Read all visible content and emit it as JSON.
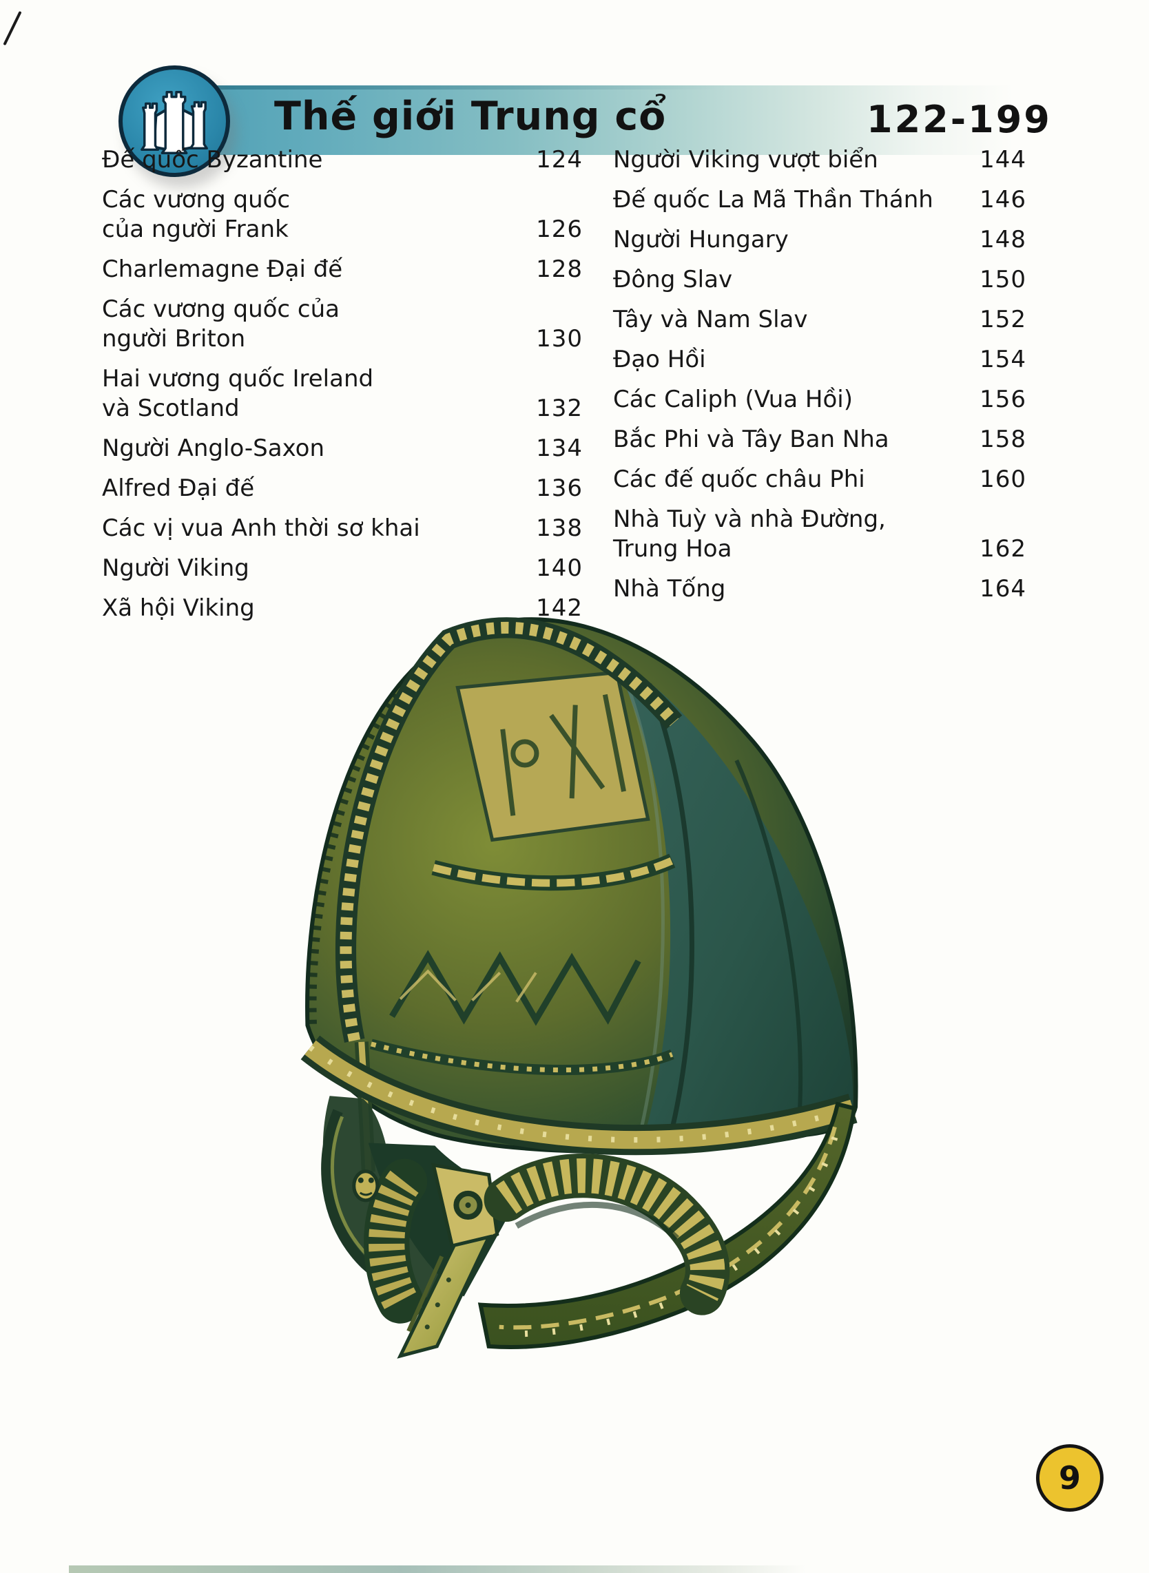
{
  "header": {
    "title": "Thế giới Trung cổ",
    "page_range": "122-199",
    "icon": "castle-towers-icon"
  },
  "toc": {
    "left": [
      {
        "lines": [
          "Đế quốc Byzantine"
        ],
        "page": "124"
      },
      {
        "lines": [
          "Các vương quốc",
          "của người Frank"
        ],
        "page": "126"
      },
      {
        "lines": [
          "Charlemagne Đại đế"
        ],
        "page": "128"
      },
      {
        "lines": [
          "Các vương quốc của",
          "người Briton"
        ],
        "page": "130"
      },
      {
        "lines": [
          "Hai vương quốc Ireland",
          "và Scotland"
        ],
        "page": "132"
      },
      {
        "lines": [
          "Người Anglo-Saxon"
        ],
        "page": "134"
      },
      {
        "lines": [
          "Alfred Đại đế"
        ],
        "page": "136"
      },
      {
        "lines": [
          "Các vị vua Anh thời sơ khai"
        ],
        "page": "138"
      },
      {
        "lines": [
          "Người Viking"
        ],
        "page": "140"
      },
      {
        "lines": [
          "Xã hội Viking"
        ],
        "page": "142"
      }
    ],
    "right": [
      {
        "lines": [
          "Người Viking vượt biển"
        ],
        "page": "144"
      },
      {
        "lines": [
          "Đế quốc La Mã Thần Thánh"
        ],
        "page": "146"
      },
      {
        "lines": [
          "Người Hungary"
        ],
        "page": "148"
      },
      {
        "lines": [
          "Đông Slav"
        ],
        "page": "150"
      },
      {
        "lines": [
          "Tây và Nam Slav"
        ],
        "page": "152"
      },
      {
        "lines": [
          "Đạo Hồi"
        ],
        "page": "154"
      },
      {
        "lines": [
          "Các Caliph (Vua Hồi)"
        ],
        "page": "156"
      },
      {
        "lines": [
          "Bắc Phi và Tây Ban Nha"
        ],
        "page": "158"
      },
      {
        "lines": [
          "Các đế quốc châu Phi"
        ],
        "page": "160"
      },
      {
        "lines": [
          "Nhà Tuỳ và nhà Đường,",
          "Trung Hoa"
        ],
        "page": "162"
      },
      {
        "lines": [
          "Nhà Tống"
        ],
        "page": "164"
      }
    ]
  },
  "illustration": {
    "name": "vendel-viking-helmet"
  },
  "footer": {
    "page_number": "9"
  },
  "colors": {
    "banner_teal": "#4d9fb5",
    "icon_blue": "#2a86a9",
    "badge_yellow": "#ecc32e",
    "helmet_olive": "#6f7e2e",
    "helmet_teal": "#2c584a",
    "helmet_khaki": "#c6b75c"
  }
}
